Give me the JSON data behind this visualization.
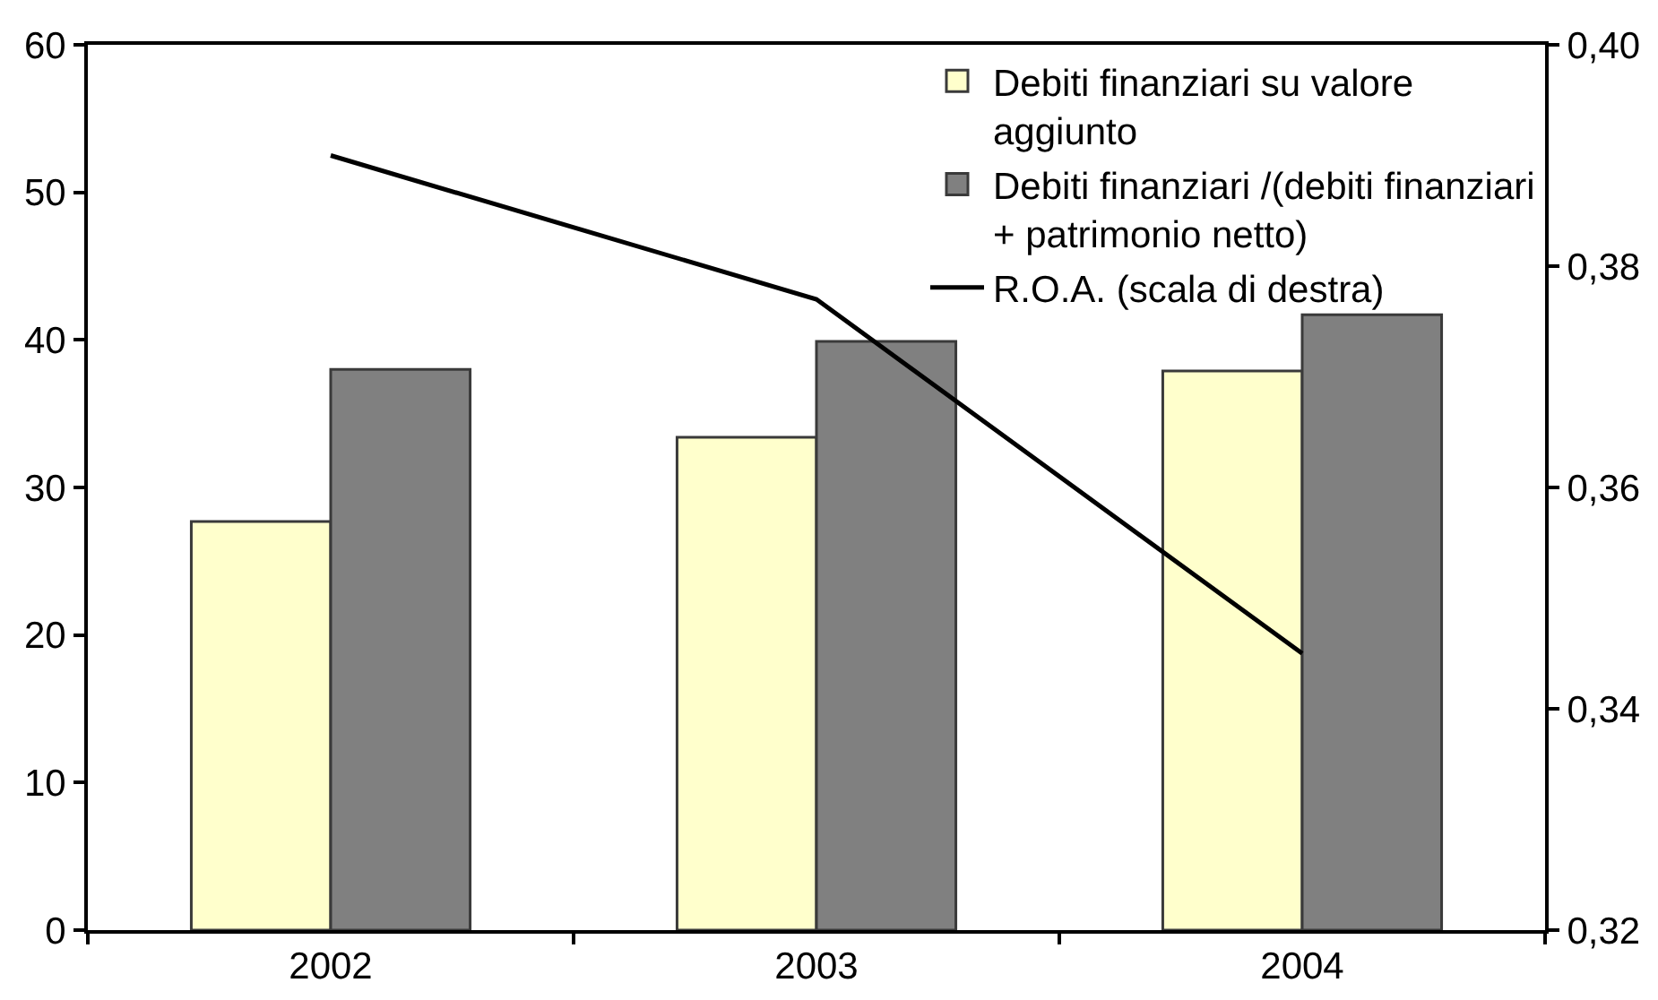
{
  "chart_data": {
    "type": "bar",
    "categories": [
      "2002",
      "2003",
      "2004"
    ],
    "series": [
      {
        "name": "Debiti finanziari su valore aggiunto",
        "color": "#ffffcc",
        "values": [
          27.7,
          33.4,
          37.9
        ]
      },
      {
        "name": "Debiti finanziari /(debiti finanziari + patrimonio netto)",
        "color": "#808080",
        "values": [
          38.0,
          39.9,
          41.7
        ]
      },
      {
        "name": "R.O.A. (scala di destra)",
        "type": "line",
        "axis": "y2",
        "color": "#000000",
        "values": [
          0.39,
          0.377,
          0.345
        ]
      }
    ],
    "ylim": [
      0,
      60
    ],
    "yticks": [
      0,
      10,
      20,
      30,
      40,
      50,
      60
    ],
    "y2lim": [
      0.32,
      0.4
    ],
    "y2ticks": [
      {
        "value": 0.32,
        "label": "0,32"
      },
      {
        "value": 0.34,
        "label": "0,34"
      },
      {
        "value": 0.36,
        "label": "0,36"
      },
      {
        "value": 0.38,
        "label": "0,38"
      },
      {
        "value": 0.4,
        "label": "0,40"
      }
    ],
    "legend": "top right"
  }
}
